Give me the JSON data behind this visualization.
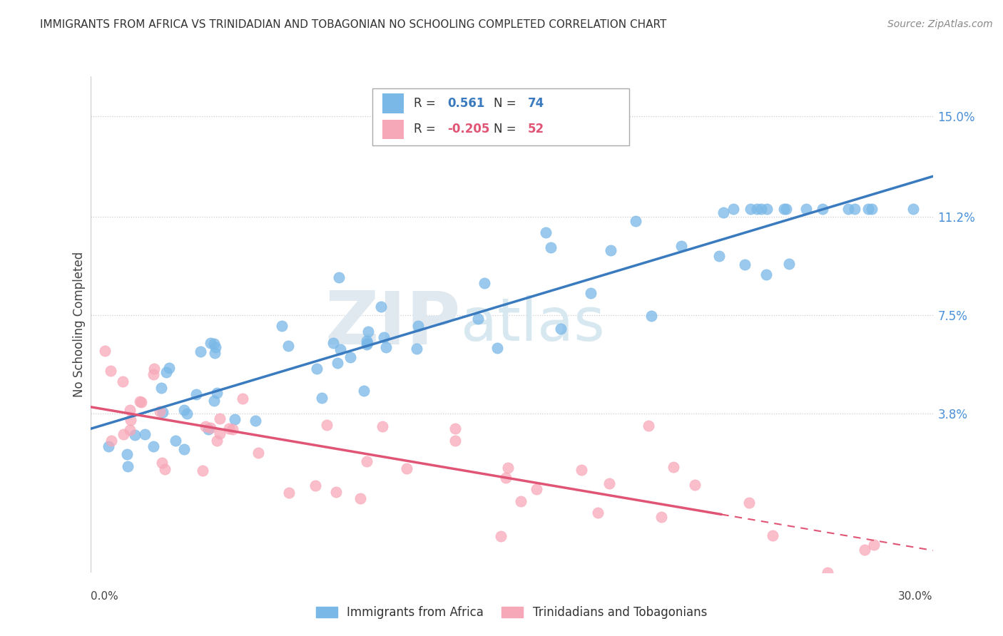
{
  "title": "IMMIGRANTS FROM AFRICA VS TRINIDADIAN AND TOBAGONIAN NO SCHOOLING COMPLETED CORRELATION CHART",
  "source": "Source: ZipAtlas.com",
  "ylabel": "No Schooling Completed",
  "y_ticks": [
    0.038,
    0.075,
    0.112,
    0.15
  ],
  "y_tick_labels": [
    "3.8%",
    "7.5%",
    "11.2%",
    "15.0%"
  ],
  "x_min": 0.0,
  "x_max": 0.3,
  "y_min": -0.022,
  "y_max": 0.165,
  "R_blue": 0.561,
  "N_blue": 74,
  "R_pink": -0.205,
  "N_pink": 52,
  "legend_label_blue": "Immigrants from Africa",
  "legend_label_pink": "Trinidadians and Tobagonians",
  "blue_color": "#7ab8e8",
  "pink_color": "#f7a8b8",
  "blue_line_color": "#3a7bbf",
  "pink_line_color": "#e05575",
  "tick_color": "#4a90d9"
}
